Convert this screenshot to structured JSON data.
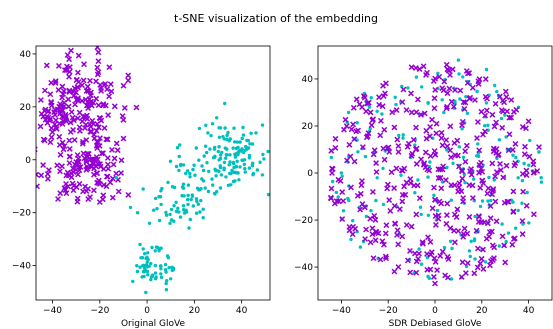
{
  "figure": {
    "title": "t-SNE visualization of the embedding",
    "colors": {
      "male": "#9400d3",
      "female": "#00bfbf"
    }
  },
  "chart_data": [
    {
      "type": "scatter",
      "title": "",
      "xlabel": "Original GloVe",
      "ylabel": "",
      "xlim": [
        -47,
        52
      ],
      "ylim": [
        -53,
        43
      ],
      "xticks": [
        -40,
        -20,
        0,
        20,
        40
      ],
      "yticks": [
        -40,
        -20,
        0,
        20,
        40
      ],
      "xtick_labels": [
        "−40",
        "−20",
        "0",
        "20",
        "40"
      ],
      "ytick_labels": [
        "−40",
        "−20",
        "0",
        "20",
        "40"
      ],
      "grid": false,
      "legend": "none",
      "series": [
        {
          "marker": "x",
          "color": "#9400d3",
          "clusters": [
            {
              "cx": -28,
              "cy": 22,
              "sx": 9,
              "sy": 9,
              "n": 150
            },
            {
              "cx": -26,
              "cy": -3,
              "sx": 9,
              "sy": 7,
              "n": 120
            },
            {
              "cx": -40,
              "cy": 16,
              "sx": 3,
              "sy": 3,
              "n": 30
            }
          ],
          "points": [
            [
              -43,
              19
            ],
            [
              -16,
              35
            ],
            [
              -10,
              28
            ],
            [
              -12,
              -12
            ],
            [
              -20,
              -16
            ],
            [
              -10,
              8
            ],
            [
              -8,
              30
            ],
            [
              -44,
              -2
            ],
            [
              -33,
              38
            ],
            [
              -18,
              12
            ],
            [
              -11,
              -5
            ]
          ]
        },
        {
          "marker": "o",
          "color": "#00bfbf",
          "clusters": [
            {
              "cx": 36,
              "cy": 1,
              "sx": 7,
              "sy": 6,
              "n": 130
            },
            {
              "cx": 20,
              "cy": -8,
              "sx": 9,
              "sy": 7,
              "n": 60
            },
            {
              "cx": 12,
              "cy": -18,
              "sx": 6,
              "sy": 3,
              "n": 30
            },
            {
              "cx": 3,
              "cy": -41,
              "sx": 4,
              "sy": 3.5,
              "n": 60
            }
          ],
          "points": [
            [
              -7,
              -18
            ],
            [
              -4,
              -20
            ],
            [
              1,
              -24
            ],
            [
              4,
              -33
            ],
            [
              -3,
              -32
            ],
            [
              10,
              -45
            ],
            [
              -2,
              -37
            ],
            [
              9,
              -37
            ],
            [
              49,
              2
            ],
            [
              33,
              12
            ],
            [
              44,
              10
            ]
          ]
        }
      ]
    },
    {
      "type": "scatter",
      "title": "",
      "xlabel": "SDR Debiased GloVe",
      "ylabel": "",
      "xlim": [
        -50,
        50
      ],
      "ylim": [
        -54,
        54
      ],
      "xticks": [
        -40,
        -20,
        0,
        20,
        40
      ],
      "yticks": [
        -40,
        -20,
        0,
        20,
        40
      ],
      "xtick_labels": [
        "−40",
        "−20",
        "0",
        "20",
        "40"
      ],
      "ytick_labels": [
        "−40",
        "−20",
        "0",
        "20",
        "40"
      ],
      "grid": false,
      "legend": "none",
      "series": [
        {
          "marker": "o",
          "color": "#00bfbf",
          "disk": {
            "cx": 0,
            "cy": 0,
            "r": 46,
            "n": 200
          },
          "points": [
            [
              10,
              48
            ],
            [
              -28,
              28
            ],
            [
              -3,
              -44
            ],
            [
              22,
              44
            ],
            [
              -40,
              0
            ]
          ]
        },
        {
          "marker": "x",
          "color": "#9400d3",
          "disk": {
            "cx": 0,
            "cy": 0,
            "r": 46,
            "n": 430
          },
          "points": [
            [
              -42,
              -12
            ],
            [
              -44,
              0
            ],
            [
              42,
              5
            ],
            [
              0,
              -47
            ],
            [
              5,
              46
            ],
            [
              -10,
              45
            ],
            [
              40,
              22
            ],
            [
              -30,
              32
            ],
            [
              30,
              -38
            ]
          ]
        }
      ]
    }
  ]
}
